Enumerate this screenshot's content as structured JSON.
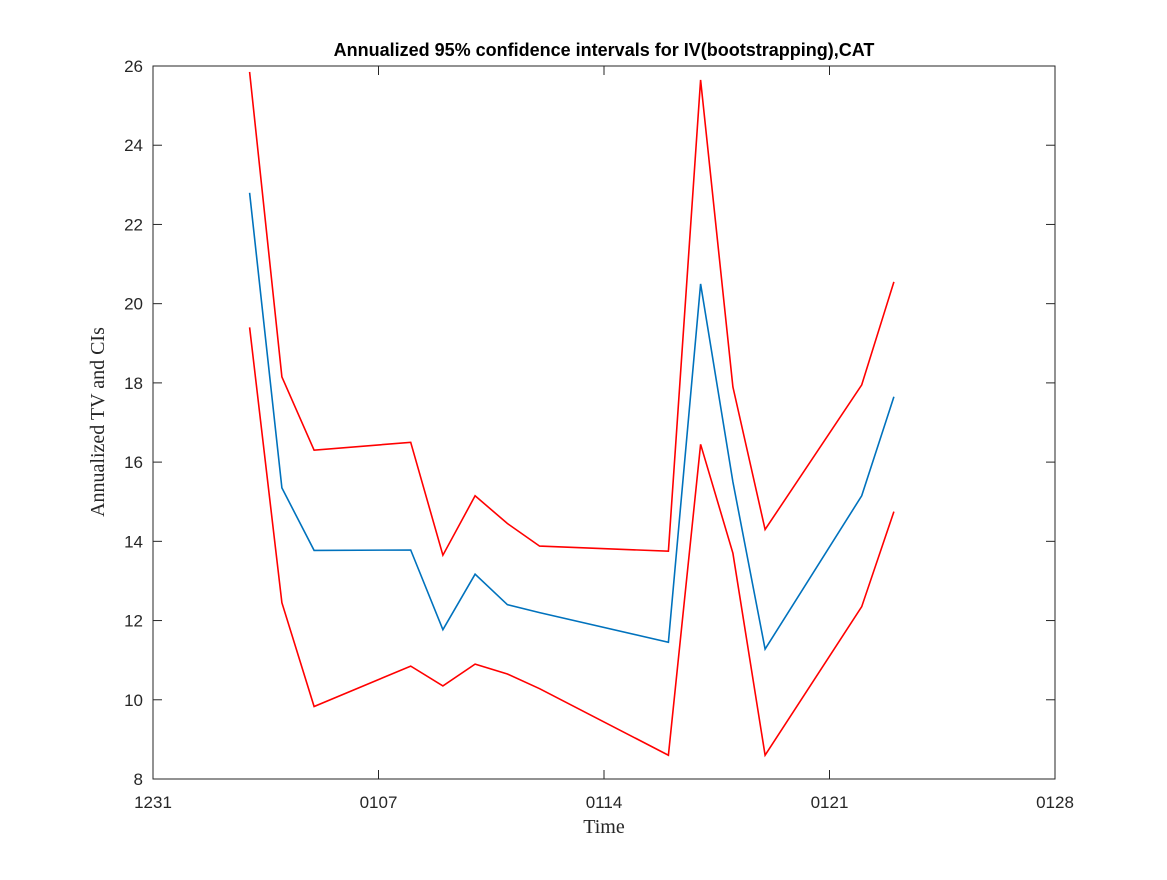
{
  "chart_data": {
    "type": "line",
    "title": "Annualized 95% confidence intervals for IV(bootstrapping),CAT",
    "xlabel": "Time",
    "ylabel": "Annualized TV and CIs",
    "xlim": [
      "2016-12-31",
      "2017-01-28"
    ],
    "ylim": [
      8,
      26
    ],
    "x_ticks": [
      {
        "date": "2016-12-31",
        "label": "1231"
      },
      {
        "date": "2017-01-07",
        "label": "0107"
      },
      {
        "date": "2017-01-14",
        "label": "0114"
      },
      {
        "date": "2017-01-21",
        "label": "0121"
      },
      {
        "date": "2017-01-28",
        "label": "0128"
      }
    ],
    "y_ticks": [
      8,
      10,
      12,
      14,
      16,
      18,
      20,
      22,
      24,
      26
    ],
    "grid": false,
    "x": [
      "2017-01-03",
      "2017-01-04",
      "2017-01-05",
      "2017-01-08",
      "2017-01-09",
      "2017-01-10",
      "2017-01-11",
      "2017-01-12",
      "2017-01-16",
      "2017-01-17",
      "2017-01-18",
      "2017-01-19",
      "2017-01-22",
      "2017-01-23"
    ],
    "series": [
      {
        "color": "#ff0000",
        "values": [
          25.85,
          18.15,
          16.3,
          16.5,
          13.65,
          15.15,
          14.45,
          13.88,
          13.75,
          25.65,
          17.9,
          14.3,
          17.95,
          20.55
        ]
      },
      {
        "color": "#0072bd",
        "values": [
          22.8,
          15.35,
          13.77,
          13.78,
          11.77,
          13.17,
          12.4,
          12.2,
          11.45,
          20.5,
          15.5,
          11.28,
          15.15,
          17.65
        ]
      },
      {
        "color": "#ff0000",
        "values": [
          19.4,
          12.45,
          9.83,
          10.85,
          10.35,
          10.9,
          10.65,
          10.28,
          8.6,
          16.45,
          13.7,
          8.6,
          12.35,
          14.75
        ]
      }
    ]
  }
}
